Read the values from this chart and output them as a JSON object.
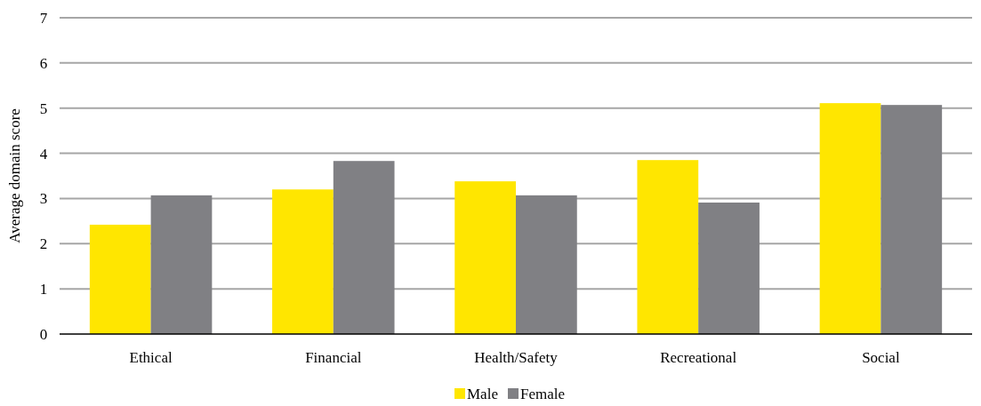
{
  "chart_data": {
    "type": "bar",
    "ylabel": "Average domain score",
    "categories": [
      "Ethical",
      "Financial",
      "Health/Safety",
      "Recreational",
      "Social"
    ],
    "series": [
      {
        "name": "Male",
        "color": "#ffe600",
        "values": [
          2.42,
          3.2,
          3.38,
          3.85,
          5.11
        ]
      },
      {
        "name": "Female",
        "color": "#808084",
        "values": [
          3.07,
          3.83,
          3.07,
          2.91,
          5.07
        ]
      }
    ],
    "ylim": [
      0,
      7
    ],
    "yticks": [
      0,
      1,
      2,
      3,
      4,
      5,
      6,
      7
    ],
    "grid": "y",
    "legend": "bottom"
  }
}
